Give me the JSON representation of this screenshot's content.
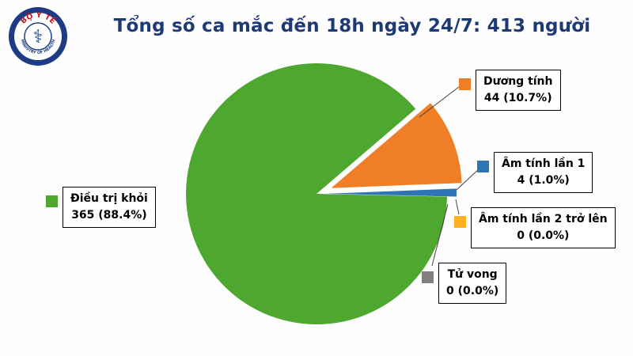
{
  "logo": {
    "top_text": "BỘ Y TẾ",
    "bottom_text": "MINISTRY OF HEALTH"
  },
  "title": "Tổng số ca mắc đến 18h ngày 24/7: 413 người",
  "colors": {
    "title": "#1e3a75",
    "recovered": "#4ea72e",
    "positive": "#f07e26",
    "negative1": "#2e75b6",
    "negative2": "#ffb020",
    "deaths": "#808080"
  },
  "chart_data": {
    "type": "pie",
    "title": "Tổng số ca mắc đến 18h ngày 24/7: 413 người",
    "total": 413,
    "slices": [
      {
        "label": "Điều trị khỏi",
        "value": 365,
        "pct": 88.4,
        "display": "365 (88.4%)",
        "color": "#4ea72e"
      },
      {
        "label": "Dương tính",
        "value": 44,
        "pct": 10.7,
        "display": "44 (10.7%)",
        "color": "#f07e26"
      },
      {
        "label": "Âm tính lần 1",
        "value": 4,
        "pct": 1.0,
        "display": "4 (1.0%)",
        "color": "#2e75b6"
      },
      {
        "label": "Âm tính lần 2 trở lên",
        "value": 0,
        "pct": 0.0,
        "display": "0 (0.0%)",
        "color": "#ffb020"
      },
      {
        "label": "Tử vong",
        "value": 0,
        "pct": 0.0,
        "display": "0 (0.0%)",
        "color": "#808080"
      }
    ],
    "legend_position": "callouts-around-pie"
  }
}
